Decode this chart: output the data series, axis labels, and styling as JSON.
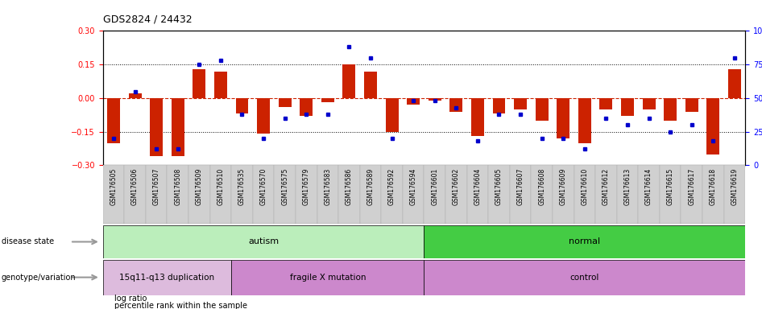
{
  "title": "GDS2824 / 24432",
  "samples": [
    "GSM176505",
    "GSM176506",
    "GSM176507",
    "GSM176508",
    "GSM176509",
    "GSM176510",
    "GSM176535",
    "GSM176570",
    "GSM176575",
    "GSM176579",
    "GSM176583",
    "GSM176586",
    "GSM176589",
    "GSM176592",
    "GSM176594",
    "GSM176601",
    "GSM176602",
    "GSM176604",
    "GSM176605",
    "GSM176607",
    "GSM176608",
    "GSM176609",
    "GSM176610",
    "GSM176612",
    "GSM176613",
    "GSM176614",
    "GSM176615",
    "GSM176617",
    "GSM176618",
    "GSM176619"
  ],
  "log_ratio": [
    -0.2,
    0.02,
    -0.26,
    -0.26,
    0.13,
    0.12,
    -0.07,
    -0.16,
    -0.04,
    -0.08,
    -0.02,
    0.15,
    0.12,
    -0.15,
    -0.03,
    -0.01,
    -0.06,
    -0.17,
    -0.07,
    -0.05,
    -0.1,
    -0.18,
    -0.2,
    -0.05,
    -0.08,
    -0.05,
    -0.1,
    -0.06,
    -0.25,
    0.13
  ],
  "percentile": [
    20,
    55,
    12,
    12,
    75,
    78,
    38,
    20,
    35,
    38,
    38,
    88,
    80,
    20,
    48,
    48,
    43,
    18,
    38,
    38,
    20,
    20,
    12,
    35,
    30,
    35,
    25,
    30,
    18,
    80
  ],
  "autism_count": 15,
  "dup_count": 6,
  "fragile_count": 9,
  "colors": {
    "bar": "#cc2200",
    "dot": "#0000cc",
    "zero_line": "#cc2200",
    "autism_light": "#bbeebb",
    "normal_green": "#44cc44",
    "dup_pink": "#ddbbdd",
    "fragile_pink": "#cc88cc",
    "control_pink": "#cc88cc",
    "tick_bg": "#cccccc",
    "label_arrow": "#999999"
  },
  "ylim": [
    -0.3,
    0.3
  ],
  "yticks_left": [
    -0.3,
    -0.15,
    0.0,
    0.15,
    0.3
  ],
  "yticks_right": [
    0,
    25,
    50,
    75,
    100
  ],
  "hlines_dotted": [
    -0.15,
    0.15
  ],
  "hline_zero": 0.0
}
